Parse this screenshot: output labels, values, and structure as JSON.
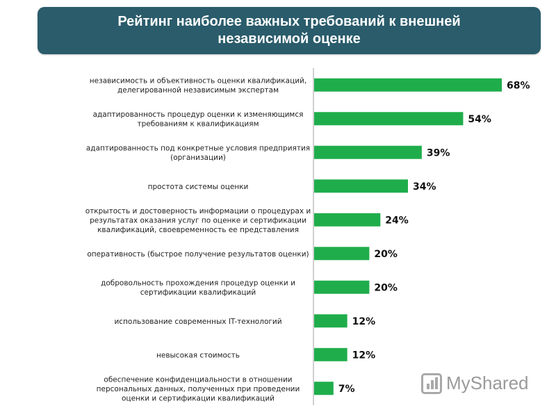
{
  "header": {
    "title_line1": "Рейтинг наиболее важных требований к внешней",
    "title_line2": "независимой оценке"
  },
  "colors": {
    "banner": "#2a5c6b",
    "bar": "#1fad4b",
    "axis": "#bfbfbf"
  },
  "watermark": {
    "text": "MyShared",
    "icon": "myshared-logo-icon"
  },
  "chart_data": {
    "type": "bar",
    "orientation": "horizontal",
    "title": "Рейтинг наиболее важных требований к внешней независимой оценке",
    "grid": false,
    "legend": "none",
    "xlim": [
      0,
      68
    ],
    "categories": [
      [
        "независимость и  объективность оценки квалификаций,",
        "делегированной независимым экспертам"
      ],
      [
        "адаптированность процедур оценки к изменяющимся",
        "требованиям к квалификациям"
      ],
      [
        "адаптированность под конкретные условия предприятия",
        "(организации)"
      ],
      [
        "простота системы оценки"
      ],
      [
        "открытость и достоверность информации о процедурах и",
        "результатах оказания услуг по оценке и сертификации",
        "квалификаций, своевременность ее представления"
      ],
      [
        "оперативность (быстрое получение результатов оценки)"
      ],
      [
        "добровольность прохождения процедур оценки и",
        "сертификации квалификаций"
      ],
      [
        "использование современных IT-технологий"
      ],
      [
        "невысокая стоимость"
      ],
      [
        "обеспечение конфиденциальности в отношении",
        "персональных данных, полученных при проведении",
        "оценки и сертификации квалификаций"
      ]
    ],
    "values": [
      68,
      54,
      39,
      34,
      24,
      20,
      20,
      12,
      12,
      7
    ],
    "value_labels": [
      "68%",
      "54%",
      "39%",
      "34%",
      "24%",
      "20%",
      "20%",
      "12%",
      "12%",
      "7%"
    ]
  }
}
